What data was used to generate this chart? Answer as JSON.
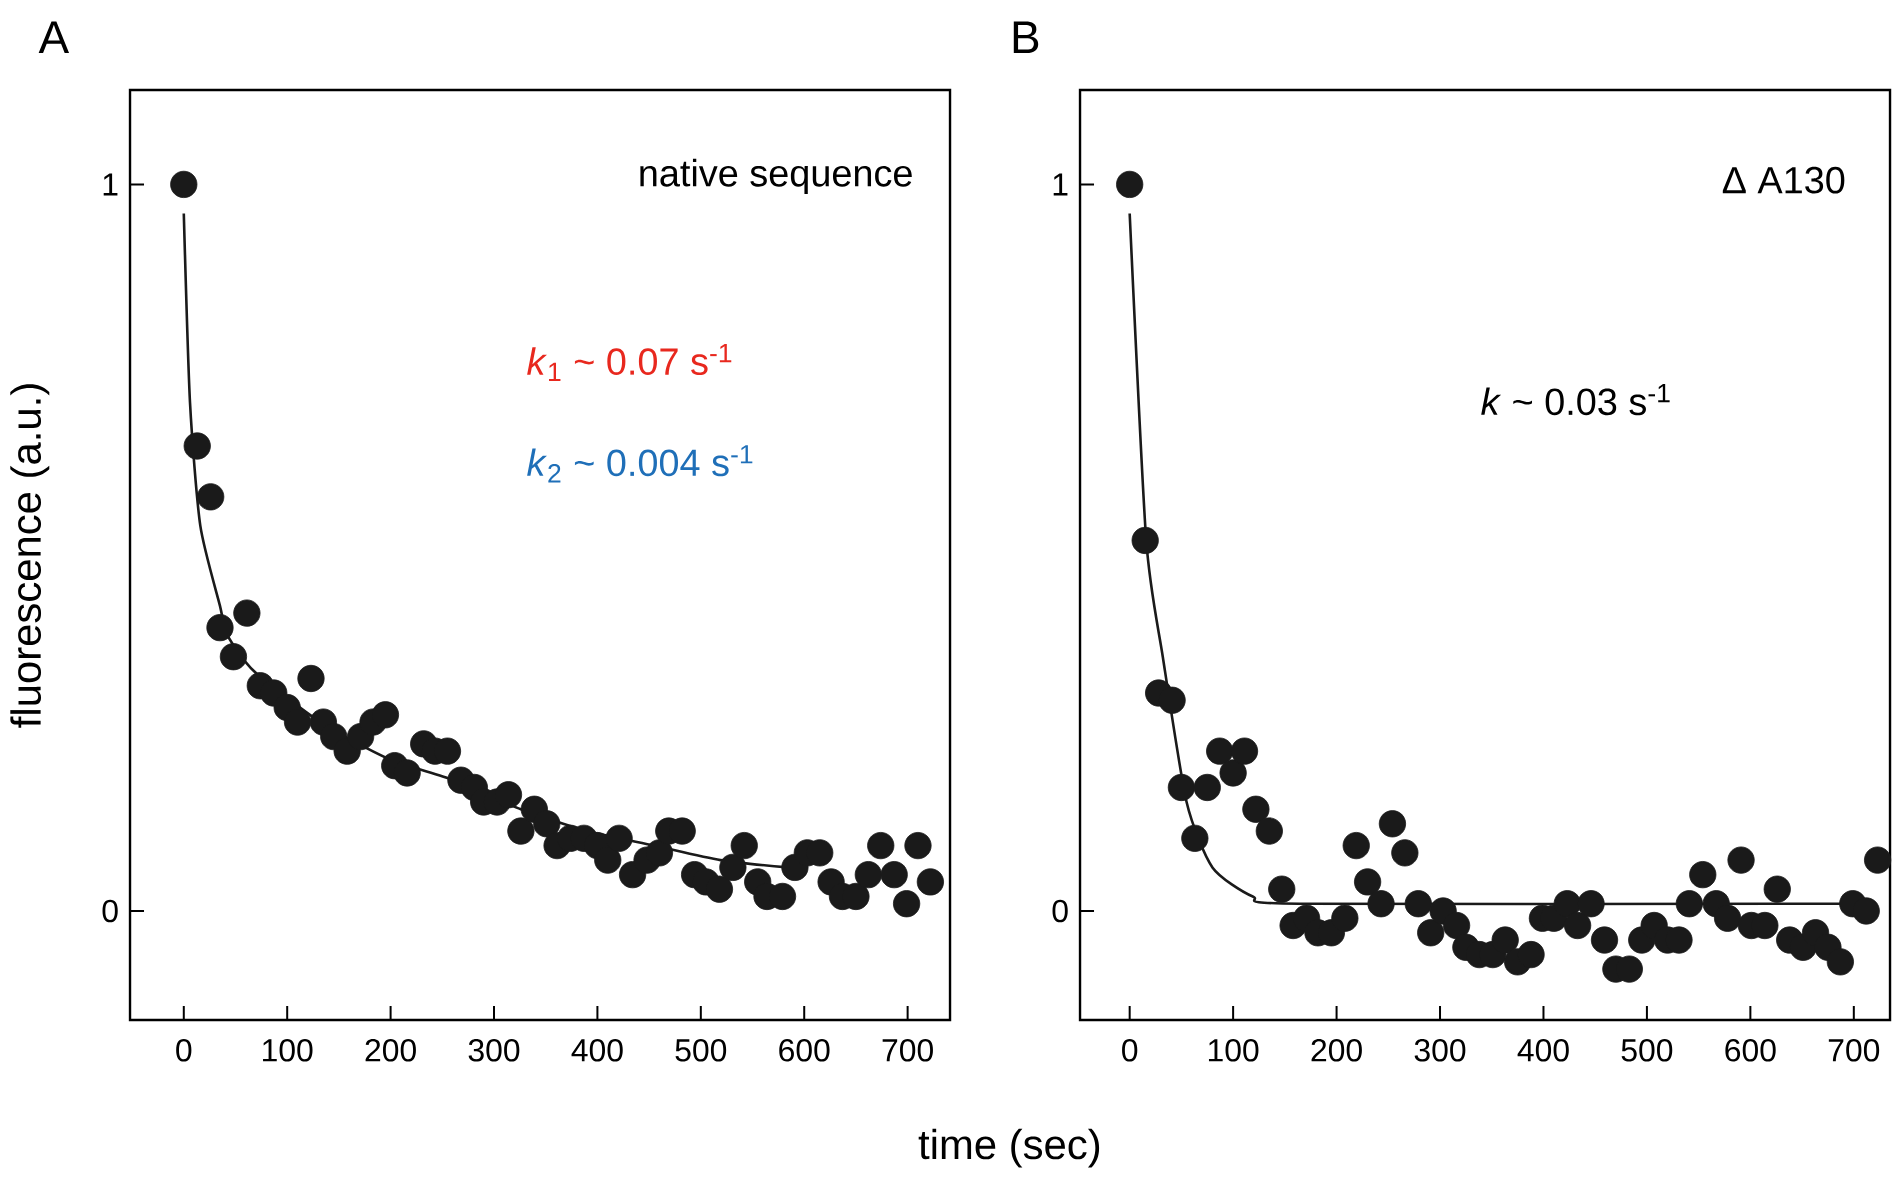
{
  "chart_data": [
    {
      "type": "scatter",
      "title": "A",
      "xlabel": "time (sec)",
      "ylabel": "fluorescence (a.u.)",
      "xlim": [
        -52,
        741
      ],
      "ylim": [
        -0.15,
        1.13
      ],
      "xticks": [
        0,
        100,
        200,
        300,
        400,
        500,
        600,
        700
      ],
      "yticks": [
        0,
        1
      ],
      "annotations": [
        "native sequence",
        "*k*$_{1}$ ~ 0.07 s$^{-1}$",
        "*k*$_{2}$ ~ 0.004 s$^{-1}$"
      ],
      "series": [
        {
          "marker": "circle",
          "color": "#1a1a1a",
          "x": [
            0,
            13,
            26,
            35,
            48,
            61,
            74,
            87,
            100,
            110,
            123,
            135,
            145,
            158,
            171,
            183,
            195,
            204,
            216,
            232,
            243,
            255,
            268,
            281,
            290,
            303,
            314,
            326,
            339,
            351,
            361,
            374,
            387,
            400,
            410,
            421,
            434,
            448,
            460,
            469,
            482,
            494,
            505,
            518,
            531,
            542,
            555,
            564,
            579,
            591,
            603,
            615,
            626,
            637,
            650,
            662,
            674,
            687,
            699,
            710,
            722
          ],
          "values": [
            1.0,
            0.64,
            0.57,
            0.39,
            0.35,
            0.41,
            0.31,
            0.3,
            0.28,
            0.26,
            0.32,
            0.26,
            0.24,
            0.22,
            0.24,
            0.26,
            0.27,
            0.2,
            0.19,
            0.23,
            0.22,
            0.22,
            0.18,
            0.17,
            0.15,
            0.15,
            0.16,
            0.11,
            0.14,
            0.12,
            0.09,
            0.1,
            0.1,
            0.09,
            0.07,
            0.1,
            0.05,
            0.07,
            0.08,
            0.11,
            0.11,
            0.05,
            0.04,
            0.03,
            0.06,
            0.09,
            0.04,
            0.02,
            0.02,
            0.06,
            0.08,
            0.08,
            0.04,
            0.02,
            0.02,
            0.05,
            0.09,
            0.05,
            0.01,
            0.09,
            0.04
          ]
        },
        {
          "type": "line",
          "color": "#1a1a1a",
          "x": [
            0,
            6,
            16,
            35,
            42,
            68,
            132,
            197,
            261,
            326,
            390,
            455,
            519,
            584,
            600
          ],
          "values": [
            0.96,
            0.7,
            0.53,
            0.42,
            0.38,
            0.33,
            0.26,
            0.21,
            0.18,
            0.14,
            0.11,
            0.09,
            0.07,
            0.06,
            0.06
          ]
        }
      ]
    },
    {
      "type": "scatter",
      "title": "B",
      "xlim": [
        -48,
        735
      ],
      "ylim": [
        -0.15,
        1.13
      ],
      "xticks": [
        0,
        100,
        200,
        300,
        400,
        500,
        600,
        700
      ],
      "yticks": [
        0,
        1
      ],
      "annotations": [
        "Δ A130",
        "*k* ~ 0.03 s$^{-1}$"
      ],
      "series": [
        {
          "marker": "circle",
          "color": "#1a1a1a",
          "x": [
            0,
            15,
            28,
            41,
            50,
            63,
            75,
            87,
            100,
            111,
            122,
            135,
            147,
            158,
            171,
            182,
            195,
            208,
            219,
            230,
            243,
            254,
            266,
            279,
            291,
            303,
            316,
            325,
            338,
            351,
            363,
            375,
            388,
            399,
            410,
            423,
            433,
            446,
            459,
            470,
            483,
            495,
            507,
            520,
            531,
            541,
            554,
            567,
            578,
            591,
            601,
            614,
            626,
            638,
            651,
            663,
            675,
            687,
            699,
            712,
            723
          ],
          "values": [
            1.0,
            0.51,
            0.3,
            0.29,
            0.17,
            0.1,
            0.17,
            0.22,
            0.19,
            0.22,
            0.14,
            0.11,
            0.03,
            -0.02,
            -0.01,
            -0.03,
            -0.03,
            -0.01,
            0.09,
            0.04,
            0.01,
            0.12,
            0.08,
            0.01,
            -0.03,
            0.0,
            -0.02,
            -0.05,
            -0.06,
            -0.06,
            -0.04,
            -0.07,
            -0.06,
            -0.01,
            -0.01,
            0.01,
            -0.02,
            0.01,
            -0.04,
            -0.08,
            -0.08,
            -0.04,
            -0.02,
            -0.04,
            -0.04,
            0.01,
            0.05,
            0.01,
            -0.01,
            0.07,
            -0.02,
            -0.02,
            0.03,
            -0.04,
            -0.05,
            -0.03,
            -0.05,
            -0.07,
            0.01,
            0.0,
            0.07
          ]
        },
        {
          "type": "line",
          "color": "#1a1a1a",
          "x": [
            0,
            16,
            32,
            55,
            80,
            119,
            164,
            700
          ],
          "values": [
            0.96,
            0.51,
            0.35,
            0.15,
            0.06,
            0.02,
            0.01,
            0.01
          ]
        }
      ]
    }
  ]
}
